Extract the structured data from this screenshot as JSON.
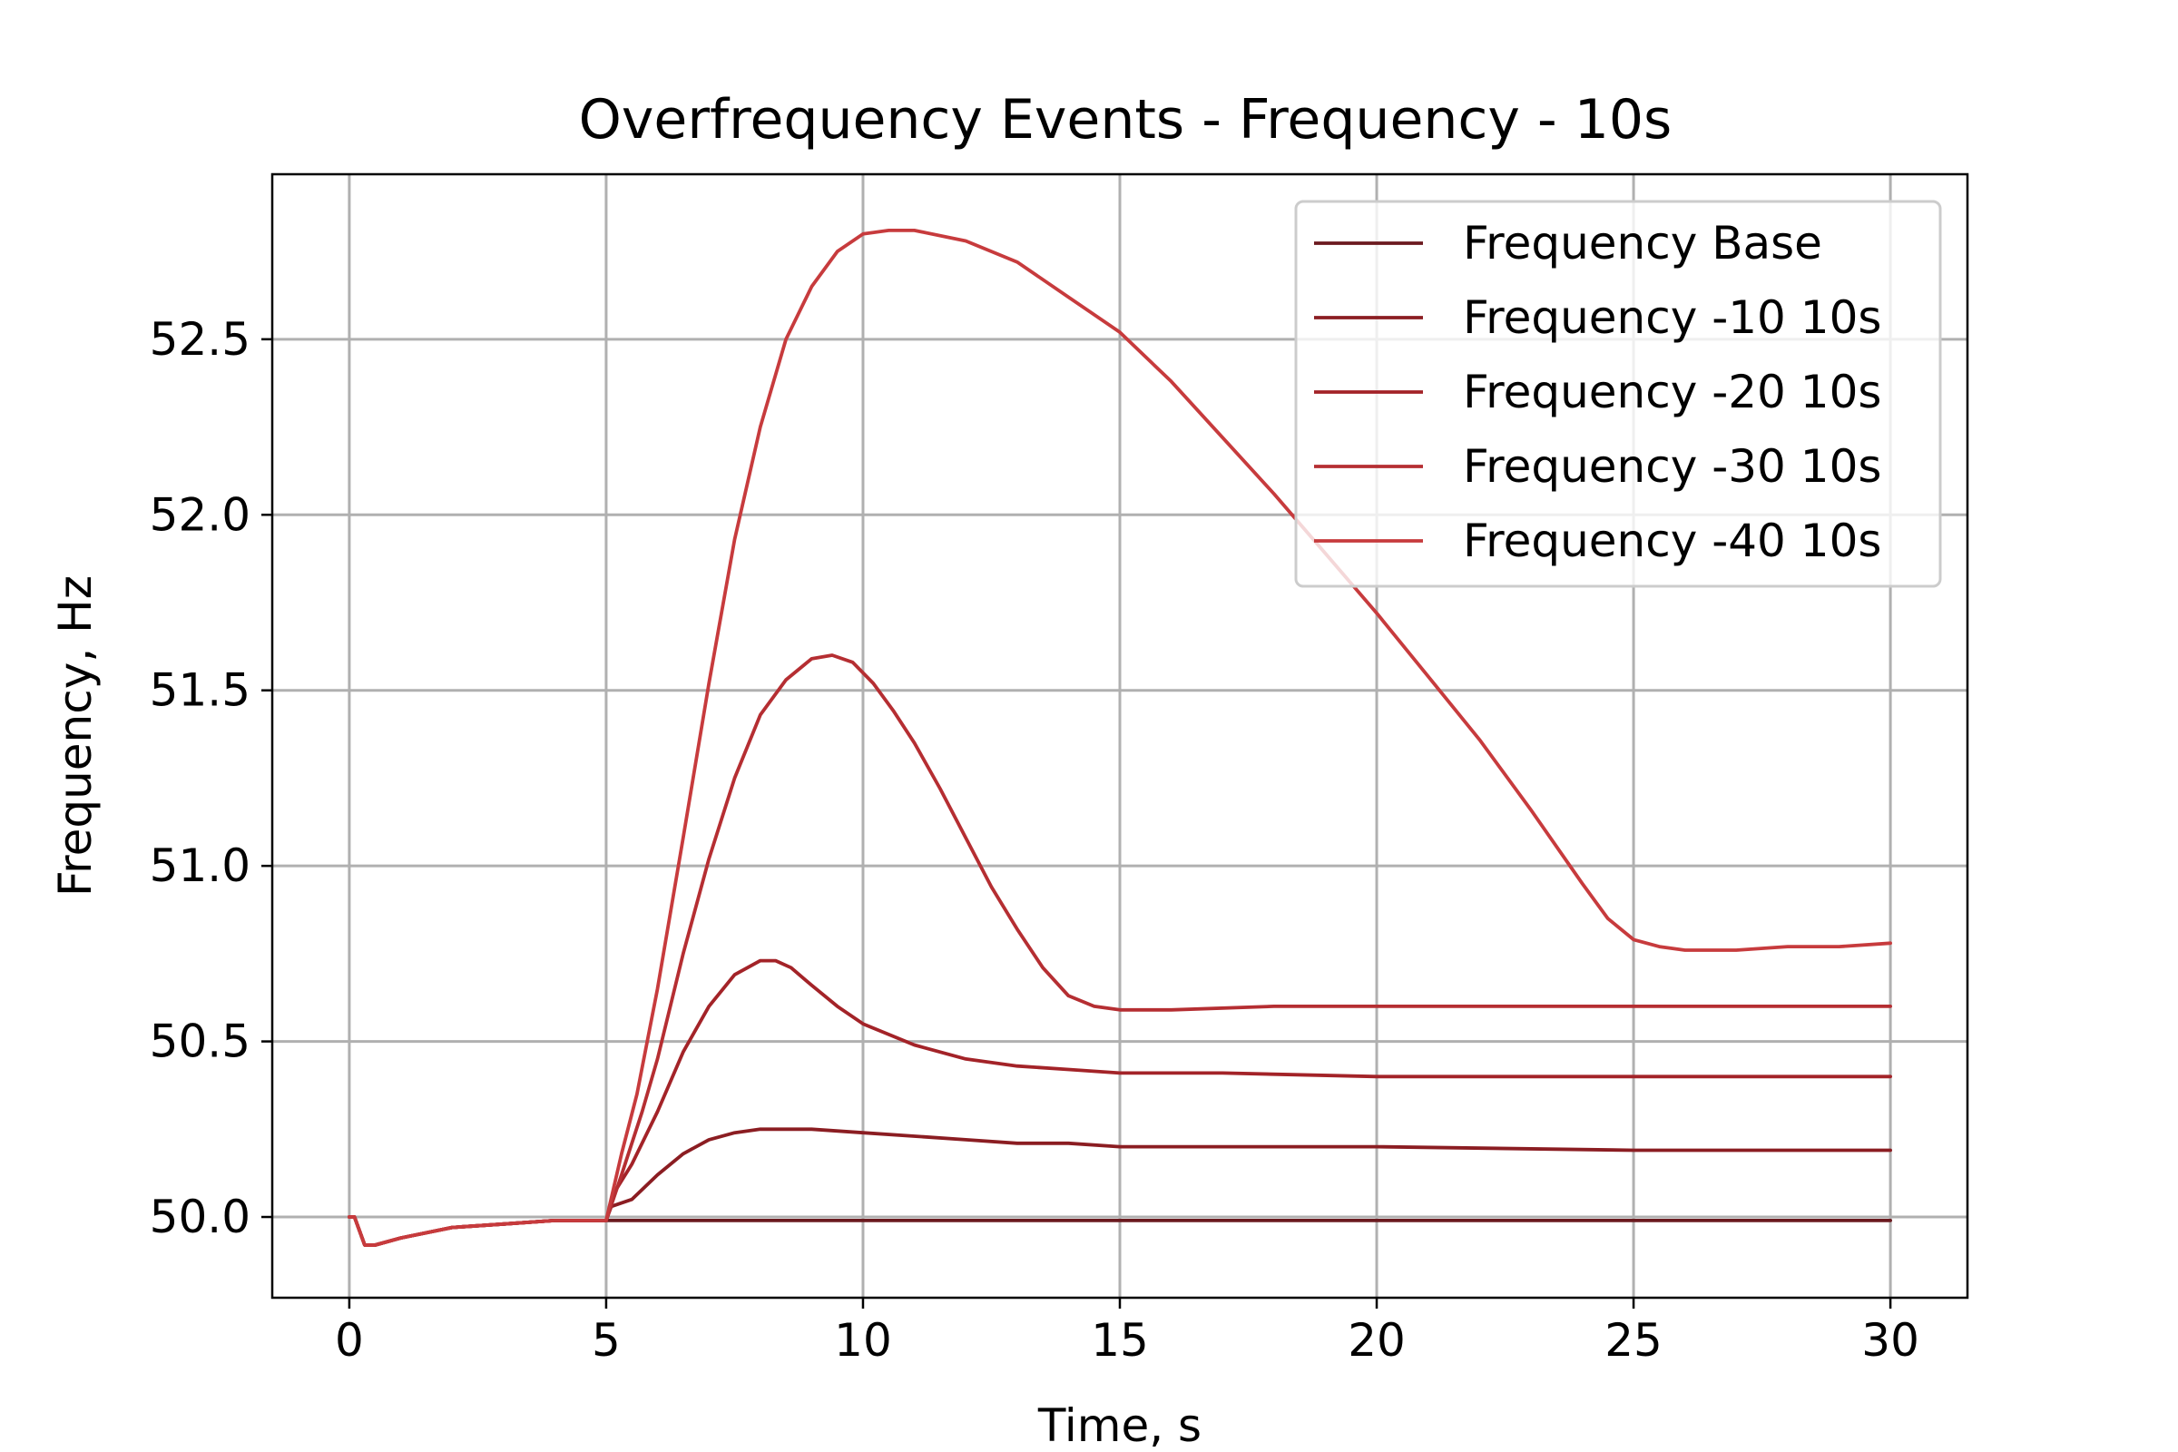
{
  "chart_data": {
    "type": "line",
    "title": "Overfrequency Events - Frequency - 10s",
    "xlabel": "Time, s",
    "ylabel": "Frequency, Hz",
    "xlim": [
      -1.5,
      31.5
    ],
    "ylim": [
      49.77,
      52.97
    ],
    "xticks": [
      0,
      5,
      10,
      15,
      20,
      25,
      30
    ],
    "xtick_labels": [
      "0",
      "5",
      "10",
      "15",
      "20",
      "25",
      "30"
    ],
    "yticks": [
      50.0,
      50.5,
      51.0,
      51.5,
      52.0,
      52.5
    ],
    "ytick_labels": [
      "50.0",
      "50.5",
      "51.0",
      "51.5",
      "52.0",
      "52.5"
    ],
    "grid": true,
    "legend_position": "top-right",
    "series": [
      {
        "name": "Frequency Base",
        "color": "#6b1a1f",
        "points": [
          [
            0,
            50.0
          ],
          [
            0.1,
            50.0
          ],
          [
            0.3,
            49.92
          ],
          [
            0.5,
            49.92
          ],
          [
            1,
            49.94
          ],
          [
            2,
            49.97
          ],
          [
            3,
            49.98
          ],
          [
            4,
            49.99
          ],
          [
            5,
            49.99
          ],
          [
            10,
            49.99
          ],
          [
            15,
            49.99
          ],
          [
            20,
            49.99
          ],
          [
            25,
            49.99
          ],
          [
            30,
            49.99
          ]
        ]
      },
      {
        "name": "Frequency -10 10s",
        "color": "#8b1d22",
        "points": [
          [
            0,
            50.0
          ],
          [
            0.1,
            50.0
          ],
          [
            0.3,
            49.92
          ],
          [
            0.5,
            49.92
          ],
          [
            1,
            49.94
          ],
          [
            2,
            49.97
          ],
          [
            3,
            49.98
          ],
          [
            4,
            49.99
          ],
          [
            5,
            49.99
          ],
          [
            5.1,
            50.03
          ],
          [
            5.5,
            50.05
          ],
          [
            6,
            50.12
          ],
          [
            6.5,
            50.18
          ],
          [
            7,
            50.22
          ],
          [
            7.5,
            50.24
          ],
          [
            8,
            50.25
          ],
          [
            8.5,
            50.25
          ],
          [
            9,
            50.25
          ],
          [
            10,
            50.24
          ],
          [
            11,
            50.23
          ],
          [
            12,
            50.22
          ],
          [
            13,
            50.21
          ],
          [
            14,
            50.21
          ],
          [
            15,
            50.2
          ],
          [
            17,
            50.2
          ],
          [
            20,
            50.2
          ],
          [
            25,
            50.19
          ],
          [
            30,
            50.19
          ]
        ]
      },
      {
        "name": "Frequency -20 10s",
        "color": "#a32328",
        "points": [
          [
            0,
            50.0
          ],
          [
            0.1,
            50.0
          ],
          [
            0.3,
            49.92
          ],
          [
            0.5,
            49.92
          ],
          [
            1,
            49.94
          ],
          [
            2,
            49.97
          ],
          [
            3,
            49.98
          ],
          [
            4,
            49.99
          ],
          [
            5,
            49.99
          ],
          [
            5.2,
            50.08
          ],
          [
            5.5,
            50.15
          ],
          [
            6,
            50.3
          ],
          [
            6.5,
            50.47
          ],
          [
            7,
            50.6
          ],
          [
            7.5,
            50.69
          ],
          [
            8,
            50.73
          ],
          [
            8.3,
            50.73
          ],
          [
            8.6,
            50.71
          ],
          [
            9,
            50.66
          ],
          [
            9.5,
            50.6
          ],
          [
            10,
            50.55
          ],
          [
            11,
            50.49
          ],
          [
            12,
            50.45
          ],
          [
            13,
            50.43
          ],
          [
            14,
            50.42
          ],
          [
            15,
            50.41
          ],
          [
            17,
            50.41
          ],
          [
            20,
            50.4
          ],
          [
            25,
            50.4
          ],
          [
            30,
            50.4
          ]
        ]
      },
      {
        "name": "Frequency -30 10s",
        "color": "#b52e32",
        "points": [
          [
            0,
            50.0
          ],
          [
            0.1,
            50.0
          ],
          [
            0.3,
            49.92
          ],
          [
            0.5,
            49.92
          ],
          [
            1,
            49.94
          ],
          [
            2,
            49.97
          ],
          [
            3,
            49.98
          ],
          [
            4,
            49.99
          ],
          [
            5,
            49.99
          ],
          [
            5.3,
            50.12
          ],
          [
            5.7,
            50.3
          ],
          [
            6,
            50.45
          ],
          [
            6.5,
            50.75
          ],
          [
            7,
            51.02
          ],
          [
            7.5,
            51.25
          ],
          [
            8,
            51.43
          ],
          [
            8.5,
            51.53
          ],
          [
            9,
            51.59
          ],
          [
            9.4,
            51.6
          ],
          [
            9.8,
            51.58
          ],
          [
            10.2,
            51.52
          ],
          [
            10.6,
            51.44
          ],
          [
            11,
            51.35
          ],
          [
            11.5,
            51.22
          ],
          [
            12,
            51.08
          ],
          [
            12.5,
            50.94
          ],
          [
            13,
            50.82
          ],
          [
            13.5,
            50.71
          ],
          [
            14,
            50.63
          ],
          [
            14.5,
            50.6
          ],
          [
            15,
            50.59
          ],
          [
            16,
            50.59
          ],
          [
            18,
            50.6
          ],
          [
            20,
            50.6
          ],
          [
            25,
            50.6
          ],
          [
            30,
            50.6
          ]
        ]
      },
      {
        "name": "Frequency -40 10s",
        "color": "#c73b3d",
        "points": [
          [
            0,
            50.0
          ],
          [
            0.1,
            50.0
          ],
          [
            0.3,
            49.92
          ],
          [
            0.5,
            49.92
          ],
          [
            1,
            49.94
          ],
          [
            2,
            49.97
          ],
          [
            3,
            49.98
          ],
          [
            4,
            49.99
          ],
          [
            5,
            49.99
          ],
          [
            5.3,
            50.18
          ],
          [
            5.6,
            50.35
          ],
          [
            6,
            50.65
          ],
          [
            6.5,
            51.08
          ],
          [
            7,
            51.52
          ],
          [
            7.5,
            51.93
          ],
          [
            8,
            52.25
          ],
          [
            8.5,
            52.5
          ],
          [
            9,
            52.65
          ],
          [
            9.5,
            52.75
          ],
          [
            10,
            52.8
          ],
          [
            10.5,
            52.81
          ],
          [
            11,
            52.81
          ],
          [
            12,
            52.78
          ],
          [
            13,
            52.72
          ],
          [
            14,
            52.62
          ],
          [
            15,
            52.52
          ],
          [
            16,
            52.38
          ],
          [
            17,
            52.22
          ],
          [
            18,
            52.06
          ],
          [
            19,
            51.89
          ],
          [
            20,
            51.72
          ],
          [
            21,
            51.54
          ],
          [
            22,
            51.36
          ],
          [
            23,
            51.16
          ],
          [
            24,
            50.95
          ],
          [
            24.5,
            50.85
          ],
          [
            25,
            50.79
          ],
          [
            25.5,
            50.77
          ],
          [
            26,
            50.76
          ],
          [
            27,
            50.76
          ],
          [
            28,
            50.77
          ],
          [
            29,
            50.77
          ],
          [
            30,
            50.78
          ]
        ]
      }
    ]
  }
}
